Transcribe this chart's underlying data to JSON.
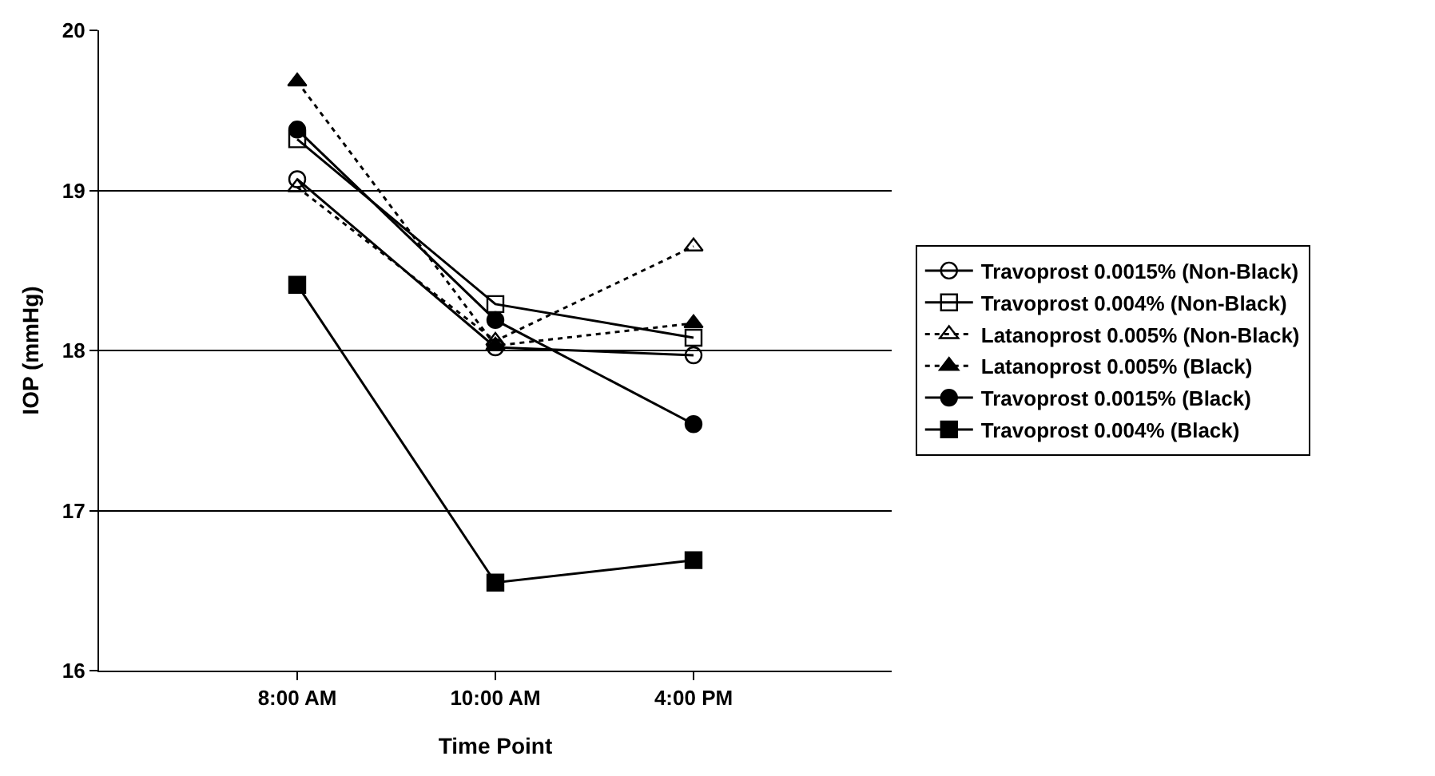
{
  "chart_data": {
    "type": "line",
    "xlabel": "Time Point",
    "ylabel": "IOP (mmHg)",
    "categories": [
      null,
      "8:00 AM",
      "10:00 AM",
      "4:00 PM",
      null
    ],
    "ylim": [
      16,
      20
    ],
    "yticks": [
      16,
      17,
      18,
      19,
      20
    ],
    "grid": "y",
    "legend": "right",
    "series": [
      {
        "name": "Travoprost 0.0015% (Non-Black)",
        "color": "#000000",
        "marker": "circle-open",
        "line_style": "solid",
        "values": [
          null,
          19.07,
          18.02,
          17.97,
          null
        ]
      },
      {
        "name": "Travoprost 0.004% (Non-Black)",
        "color": "#000000",
        "marker": "square-open",
        "line_style": "solid",
        "values": [
          null,
          19.32,
          18.29,
          18.08,
          null
        ]
      },
      {
        "name": "Latanoprost 0.005% (Non-Black)",
        "color": "#000000",
        "marker": "triangle-open",
        "line_style": "dotted",
        "values": [
          null,
          19.02,
          18.06,
          18.65,
          null
        ]
      },
      {
        "name": "Latanoprost 0.005% (Black)",
        "color": "#000000",
        "marker": "triangle",
        "line_style": "dotted",
        "values": [
          null,
          19.68,
          18.03,
          18.17,
          null
        ]
      },
      {
        "name": "Travoprost 0.0015% (Black)",
        "color": "#000000",
        "marker": "circle",
        "line_style": "solid",
        "values": [
          null,
          19.38,
          18.19,
          17.54,
          null
        ]
      },
      {
        "name": "Travoprost 0.004% (Black)",
        "color": "#000000",
        "marker": "square",
        "line_style": "solid",
        "values": [
          null,
          18.41,
          16.55,
          16.69,
          null
        ]
      }
    ]
  }
}
